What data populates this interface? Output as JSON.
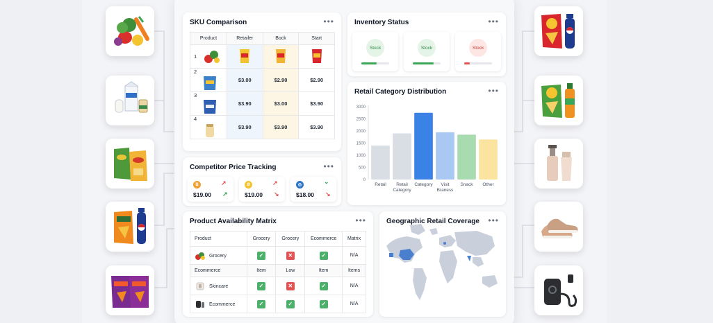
{
  "sku_comparison": {
    "title": "SKU Comparison",
    "headers": [
      "Product",
      "Retailer",
      "Bock",
      "Start"
    ],
    "rows": [
      {
        "index": "1",
        "retailer": "",
        "bock": "",
        "start": ""
      },
      {
        "index": "2",
        "retailer": "$3.00",
        "bock": "$2.90",
        "start": "$2.90"
      },
      {
        "index": "3",
        "retailer": "$3.90",
        "bock": "$3.00",
        "start": "$3.90"
      },
      {
        "index": "4",
        "retailer": "$3.90",
        "bock": "$3.90",
        "start": "$3.90"
      }
    ]
  },
  "inventory_status": {
    "title": "Inventory Status",
    "items": [
      {
        "label": "Stock",
        "level": 0.55,
        "color": "#3aa657"
      },
      {
        "label": "Stock",
        "level": 0.75,
        "color": "#3aa657"
      },
      {
        "label": "Stock",
        "level": 0.2,
        "color": "#e05353"
      }
    ]
  },
  "category_distribution": {
    "title": "Retail Category Distribution"
  },
  "competitor_tracking": {
    "title": "Competitor Price Tracking",
    "items": [
      {
        "price": "$19.00",
        "coin": "B",
        "coin_color": "#f0a133",
        "trend_top": "↗",
        "trend_top_color": "#e05353",
        "trend_bottom": "↗",
        "trend_bottom_color": "#3aa657"
      },
      {
        "price": "$19.00",
        "coin": "Ø",
        "coin_color": "#f4c430",
        "trend_top": "↗",
        "trend_top_color": "#e05353",
        "trend_bottom": "↘",
        "trend_bottom_color": "#e05353"
      },
      {
        "price": "$18.00",
        "coin": "◎",
        "coin_color": "#2f76c9",
        "trend_top": "⌄",
        "trend_top_color": "#3aa657",
        "trend_bottom": "↘",
        "trend_bottom_color": "#e05353"
      }
    ]
  },
  "availability_matrix": {
    "title": "Product Availability Matrix",
    "headers": [
      "Product",
      "Grocery",
      "Grocery",
      "Ecommerce",
      "Matrix"
    ],
    "rows": [
      {
        "name": "Grocery",
        "c1": "ok",
        "c2": "no",
        "c3": "ok",
        "c4": "N/A"
      },
      {
        "name": "Ecommerce",
        "c1": "Item",
        "c2": "Low",
        "c3": "Item",
        "c4": "Items",
        "subheader": true
      },
      {
        "name": "Skincare",
        "c1": "ok",
        "c2": "no",
        "c3": "ok",
        "c4": "N/A"
      },
      {
        "name": "Ecommerce",
        "c1": "ok",
        "c2": "ok",
        "c3": "ok",
        "c4": "N/A"
      }
    ]
  },
  "geo_coverage": {
    "title": "Geographic Retail Coverage"
  },
  "chart_data": {
    "type": "bar",
    "title": "Retail Category Distribution",
    "categories": [
      "Retail",
      "Retail Category",
      "Category",
      "Visit Braness",
      "Snack",
      "Other"
    ],
    "values": [
      1400,
      1900,
      2750,
      1950,
      1850,
      1650
    ],
    "colors": [
      "#d9dde4",
      "#d9dde4",
      "#3b82e6",
      "#a9c9f2",
      "#a8dbb0",
      "#fbe3a0"
    ],
    "ylim": [
      0,
      3000
    ],
    "yticks": [
      0,
      500,
      1000,
      1500,
      2000,
      2500,
      3000
    ],
    "grid": false
  }
}
